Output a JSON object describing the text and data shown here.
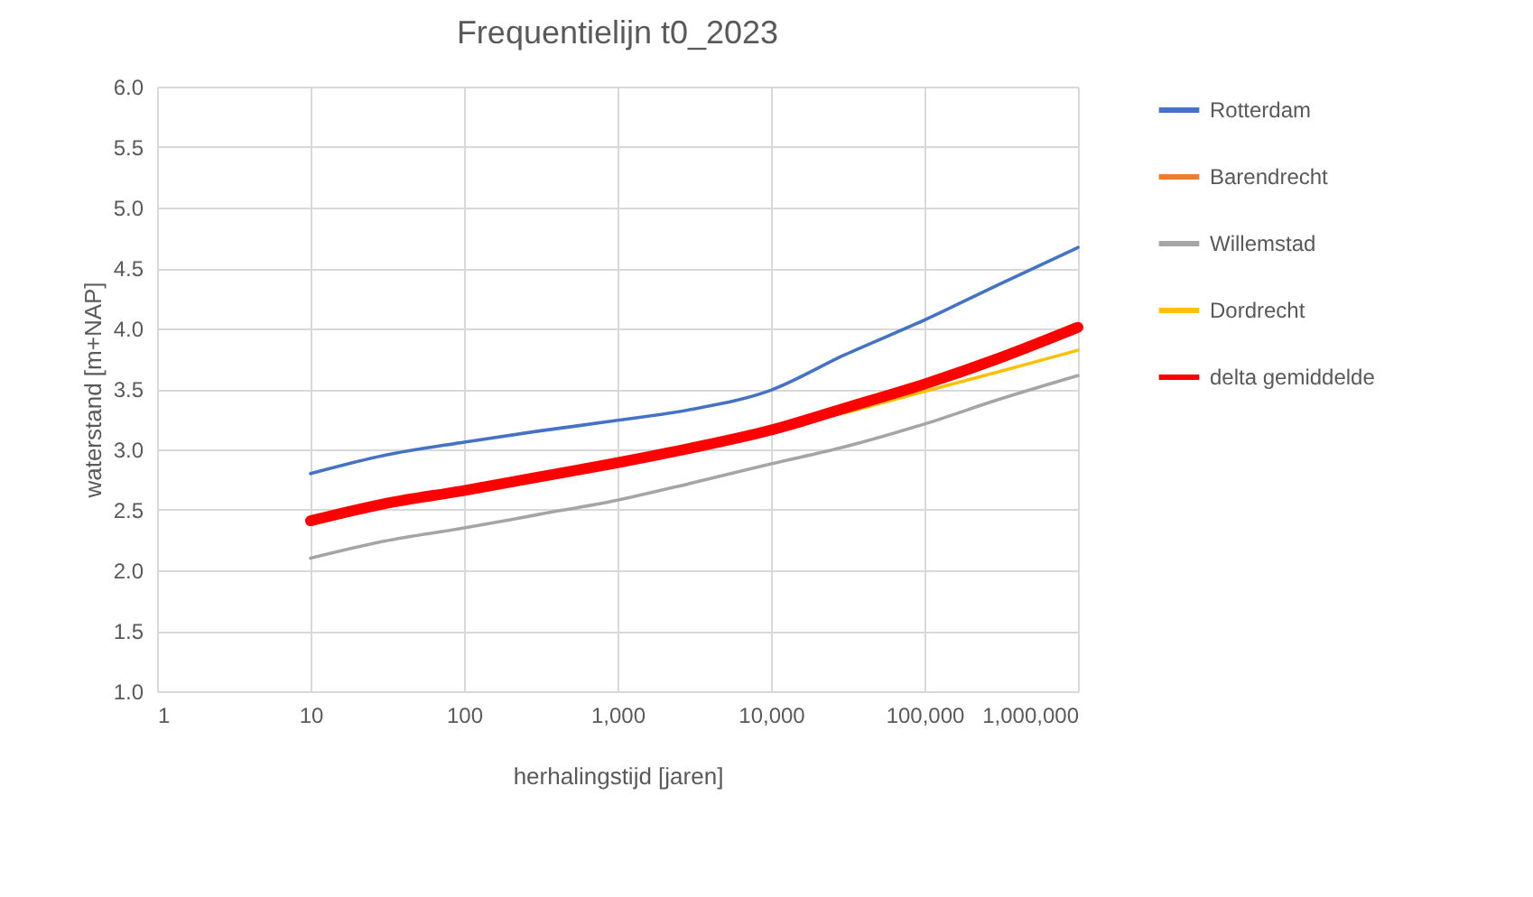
{
  "chart_data": {
    "type": "line",
    "title": "Frequentielijn t0_2023",
    "xlabel": "herhalingstijd [jaren]",
    "ylabel": "waterstand [m+NAP]",
    "x": [
      10,
      30,
      100,
      300,
      1000,
      3000,
      10000,
      30000,
      100000,
      300000,
      1000000
    ],
    "series": [
      {
        "name": "Rotterdam",
        "color": "#4472c4",
        "values": [
          2.8,
          2.95,
          3.06,
          3.15,
          3.24,
          3.33,
          3.49,
          3.78,
          4.07,
          4.36,
          4.67
        ]
      },
      {
        "name": "Barendrecht",
        "color": "#ed7d31",
        "values": [
          null,
          null,
          null,
          null,
          null,
          null,
          null,
          null,
          null,
          null,
          null
        ]
      },
      {
        "name": "Willemstad",
        "color": "#a5a5a5",
        "values": [
          2.1,
          2.24,
          2.35,
          2.46,
          2.58,
          2.72,
          2.88,
          3.02,
          3.21,
          3.41,
          3.61
        ]
      },
      {
        "name": "Dordrecht",
        "color": "#ffc000",
        "values": [
          null,
          null,
          null,
          null,
          null,
          null,
          null,
          3.3,
          3.48,
          3.64,
          3.82
        ]
      },
      {
        "name": "delta gemiddelde",
        "color": "#ff0000",
        "values": [
          2.41,
          2.55,
          2.66,
          2.77,
          2.89,
          3.01,
          3.16,
          3.34,
          3.54,
          3.75,
          4.01
        ]
      }
    ],
    "log": "x",
    "xlim": [
      1,
      1000000
    ],
    "xticks": [
      1,
      10,
      100,
      {
        "value": 1000,
        "label": "1,000"
      },
      {
        "value": 10000,
        "label": "10,000"
      },
      {
        "value": 100000,
        "label": "100,000"
      },
      {
        "value": 1000000,
        "label": "1,000,000"
      }
    ],
    "ylim": [
      1,
      6
    ],
    "yticks": [
      {
        "value": 1,
        "label": "1.0"
      },
      {
        "value": 1.5,
        "label": "1.5"
      },
      {
        "value": 2,
        "label": "2.0"
      },
      {
        "value": 2.5,
        "label": "2.5"
      },
      {
        "value": 3,
        "label": "3.0"
      },
      {
        "value": 3.5,
        "label": "3.5"
      },
      {
        "value": 4,
        "label": "4.0"
      },
      {
        "value": 4.5,
        "label": "4.5"
      },
      {
        "value": 5,
        "label": "5.0"
      },
      {
        "value": 5.5,
        "label": "5.5"
      },
      {
        "value": 6,
        "label": "6.0"
      }
    ],
    "grid": true,
    "legend": "right",
    "marker": "none",
    "line_style": "solid"
  }
}
